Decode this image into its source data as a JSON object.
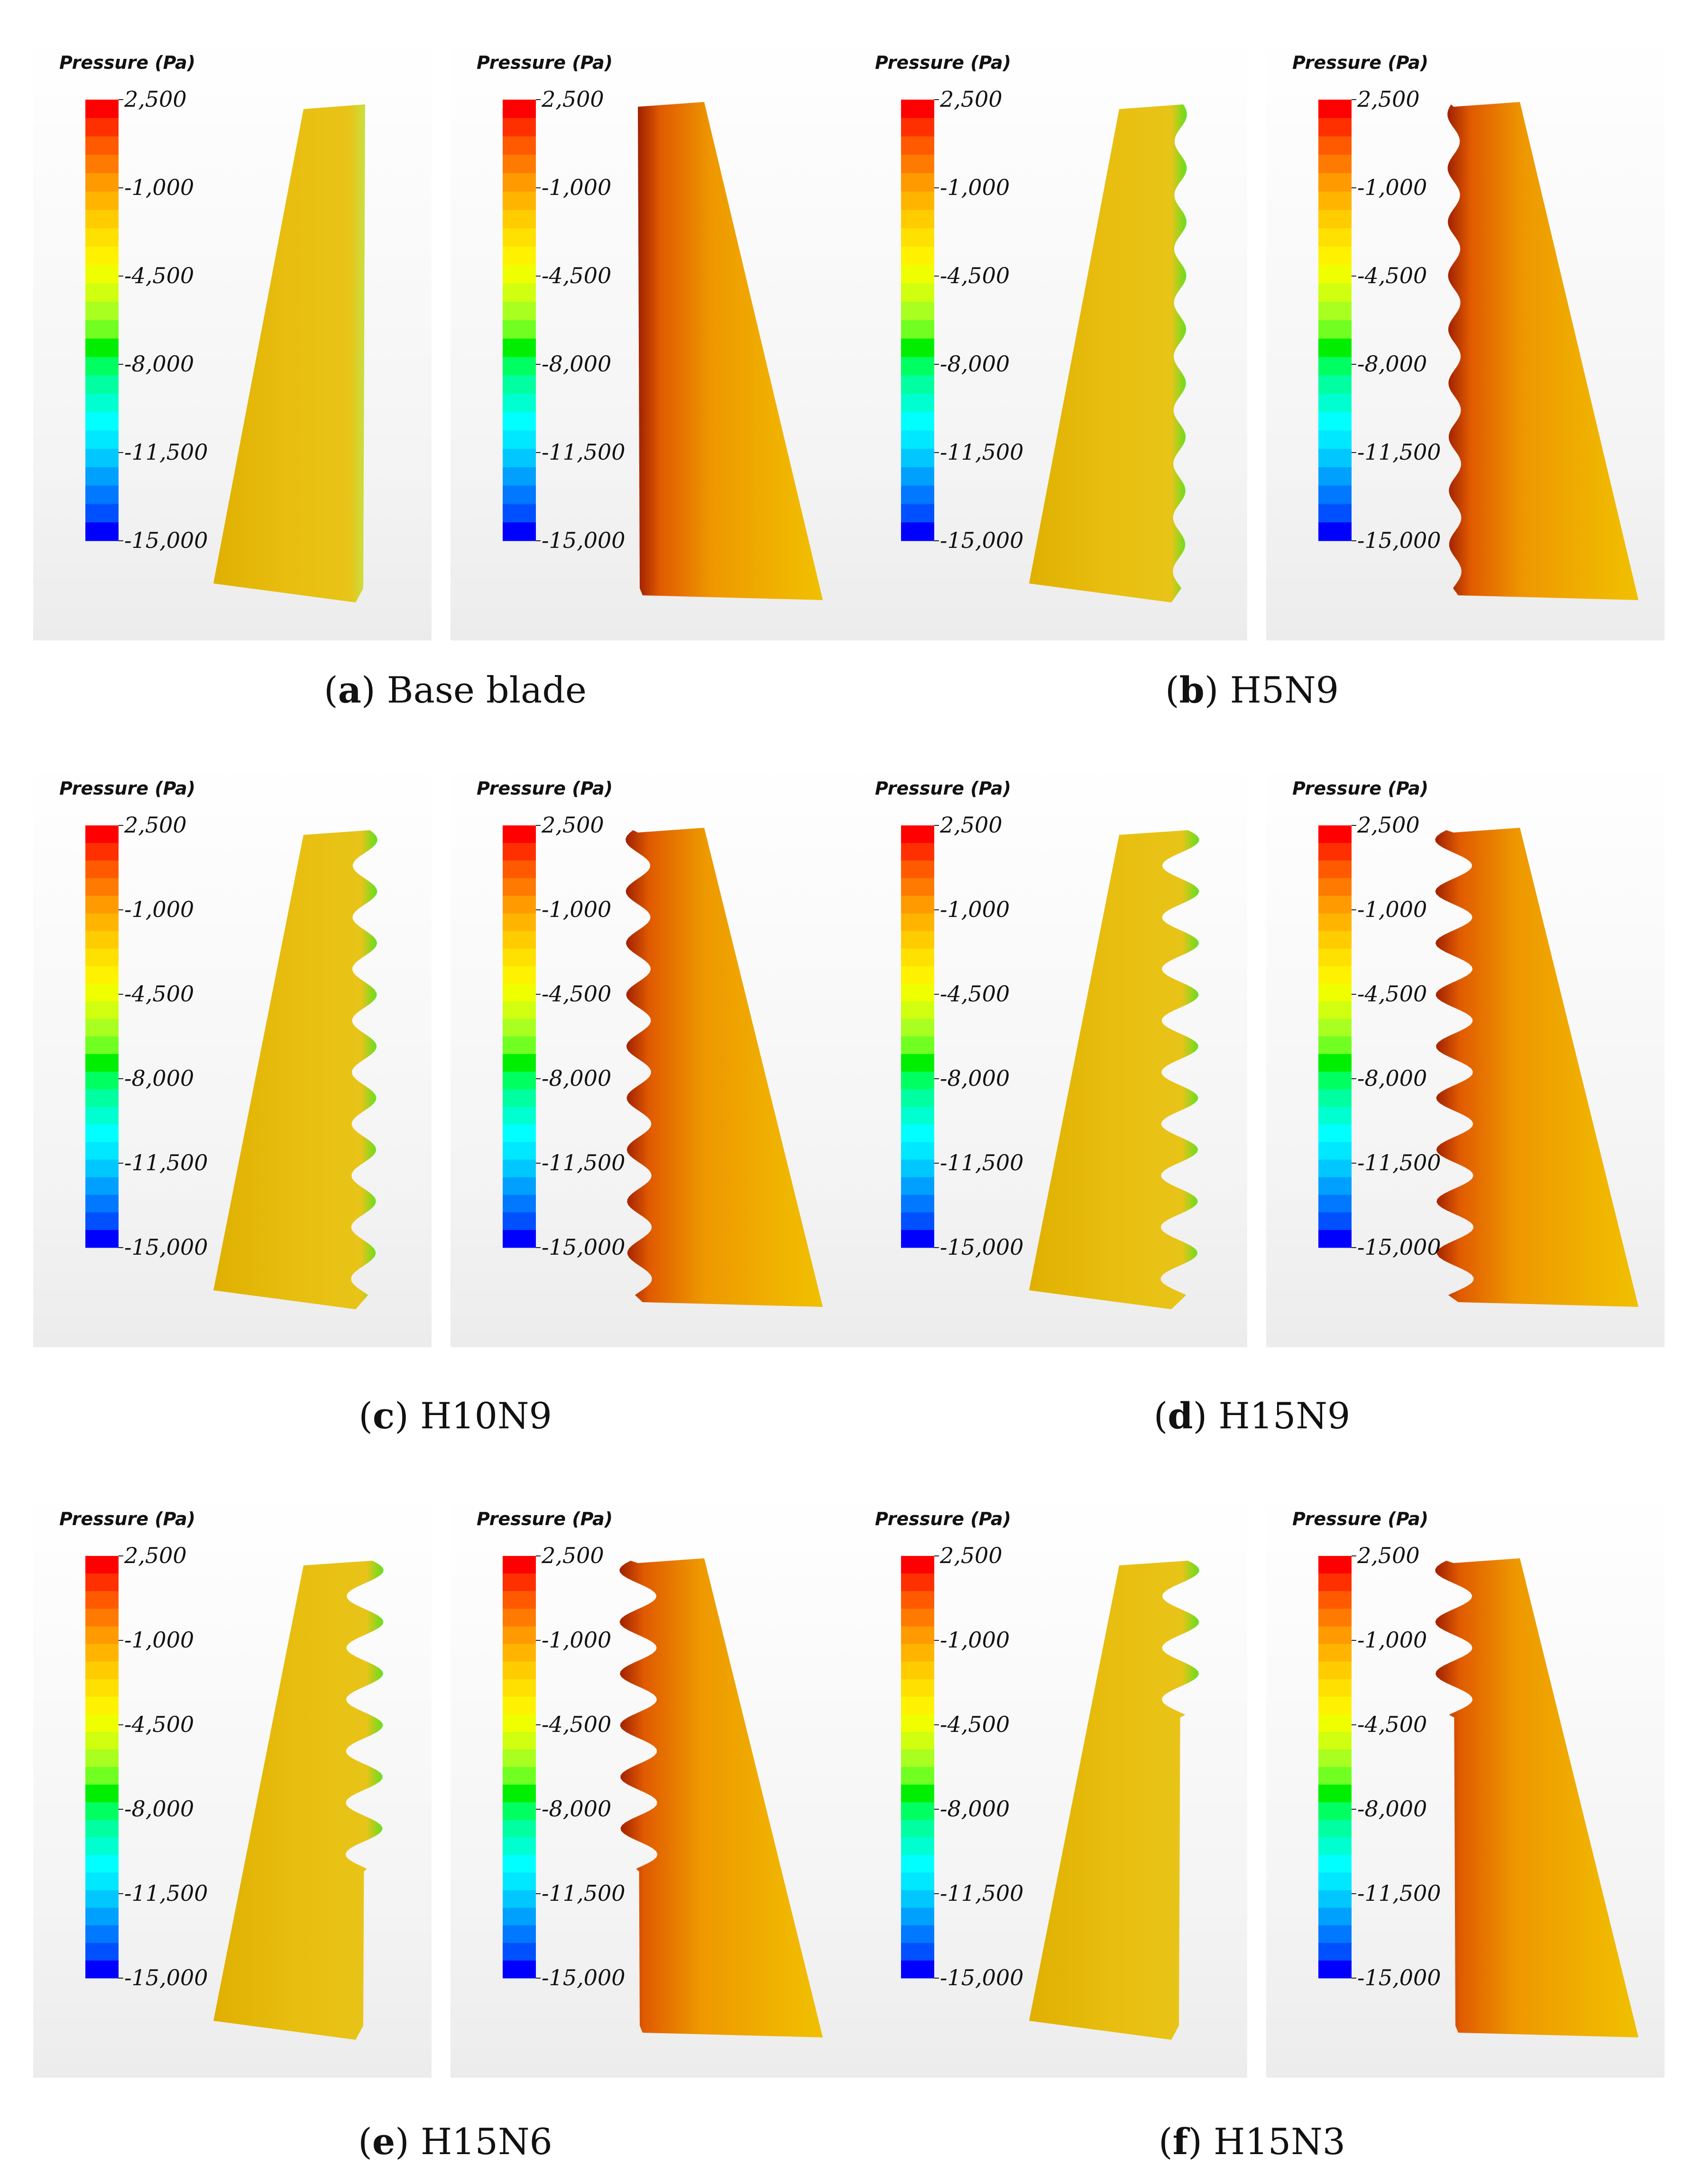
{
  "colorbar": {
    "title": "Pressure (Pa)",
    "ticks": [
      "2,500",
      "-1,000",
      "-4,500",
      "-8,000",
      "-11,500",
      "-15,000"
    ],
    "colors": [
      "#ff0000",
      "#ff3000",
      "#ff5a00",
      "#ff7a00",
      "#ff9a00",
      "#ffb400",
      "#ffcc00",
      "#ffe000",
      "#fff200",
      "#f0ff00",
      "#d0ff10",
      "#a8ff20",
      "#70ff20",
      "#00ee00",
      "#00ff60",
      "#00ffa0",
      "#00ffd0",
      "#00ffff",
      "#00e8ff",
      "#00c8ff",
      "#00a0ff",
      "#0078ff",
      "#0050ff",
      "#0000ff"
    ]
  },
  "captions": [
    {
      "letter": "a",
      "text": "Base blade"
    },
    {
      "letter": "b",
      "text": "H5N9"
    },
    {
      "letter": "c",
      "text": "H10N9"
    },
    {
      "letter": "d",
      "text": "H15N9"
    },
    {
      "letter": "e",
      "text": "H15N6"
    },
    {
      "letter": "f",
      "text": "H15N3"
    }
  ],
  "variants": [
    {
      "label": "Base blade",
      "amplitude": 0,
      "waves": 0
    },
    {
      "label": "H5N9",
      "amplitude": 5,
      "waves": 9
    },
    {
      "label": "H10N9",
      "amplitude": 10,
      "waves": 9
    },
    {
      "label": "H15N9",
      "amplitude": 15,
      "waves": 9
    },
    {
      "label": "H15N6",
      "amplitude": 15,
      "waves": 6
    },
    {
      "label": "H15N3",
      "amplitude": 15,
      "waves": 3
    }
  ]
}
